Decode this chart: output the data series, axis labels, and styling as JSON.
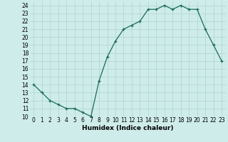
{
  "x": [
    0,
    1,
    2,
    3,
    4,
    5,
    6,
    7,
    8,
    9,
    10,
    11,
    12,
    13,
    14,
    15,
    16,
    17,
    18,
    19,
    20,
    21,
    22,
    23
  ],
  "y": [
    14,
    13,
    12,
    11.5,
    11,
    11,
    10.5,
    10,
    14.5,
    17.5,
    19.5,
    21,
    21.5,
    22,
    23.5,
    23.5,
    24,
    23.5,
    24,
    23.5,
    23.5,
    21,
    19,
    17
  ],
  "xlabel": "Humidex (Indice chaleur)",
  "xlim": [
    -0.5,
    23.5
  ],
  "ylim": [
    10,
    24.5
  ],
  "yticks": [
    10,
    11,
    12,
    13,
    14,
    15,
    16,
    17,
    18,
    19,
    20,
    21,
    22,
    23,
    24
  ],
  "xticks": [
    0,
    1,
    2,
    3,
    4,
    5,
    6,
    7,
    8,
    9,
    10,
    11,
    12,
    13,
    14,
    15,
    16,
    17,
    18,
    19,
    20,
    21,
    22,
    23
  ],
  "line_color": "#1a6b5a",
  "bg_color": "#ceecea",
  "grid_color": "#aed4d0",
  "tick_fontsize": 5.5,
  "xlabel_fontsize": 6.5
}
